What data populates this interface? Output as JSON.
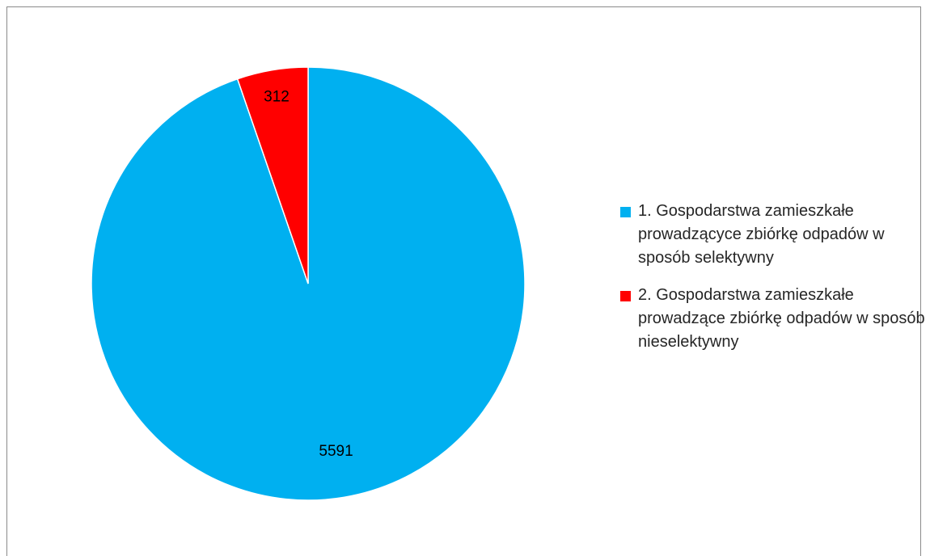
{
  "chart_data": {
    "type": "pie",
    "title": "",
    "start_angle_deg": 0,
    "direction": "counterclockwise",
    "slices": [
      {
        "label": "1. Gospodarstwa zamieszkałe prowadzącyce zbiórkę odpadów w sposób selektywny",
        "value": 5591,
        "color": "#00b0f0"
      },
      {
        "label": "2. Gospodarstwa zamieszkałe prowadzące zbiórkę odpadów w sposób nieselektywny",
        "value": 312,
        "color": "#ff0000"
      }
    ],
    "data_labels": [
      "5591",
      "312"
    ],
    "legend_position": "right"
  }
}
